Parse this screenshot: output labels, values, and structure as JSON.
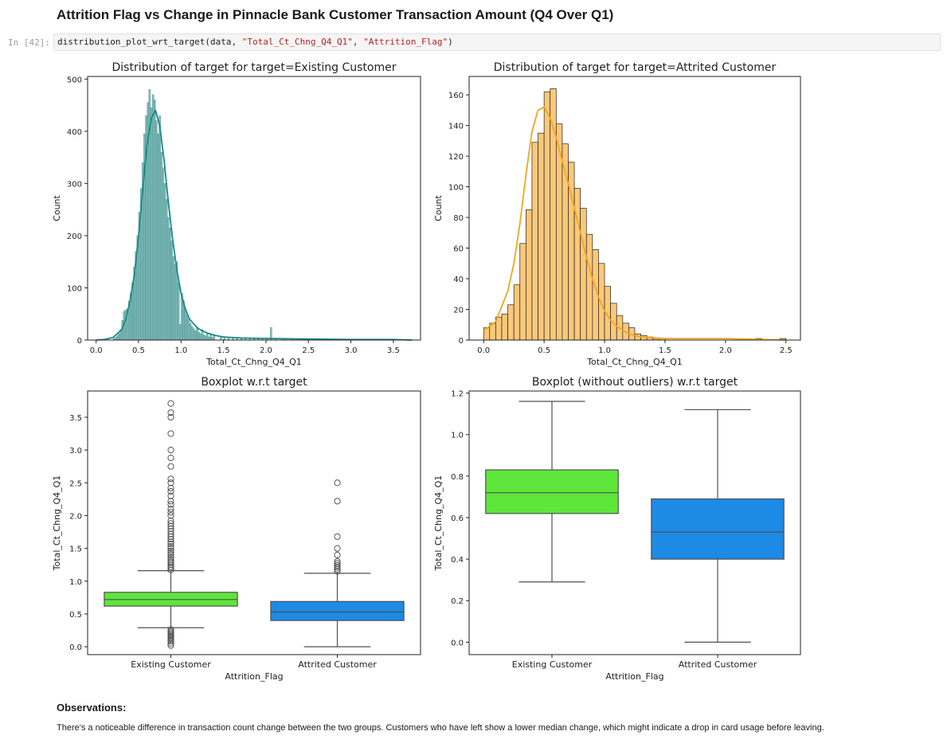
{
  "page": {
    "heading": "Attrition Flag vs Change in Pinnacle Bank Customer Transaction Amount (Q4 Over Q1)",
    "cell_prompt": "In [42]:",
    "code": {
      "prefix": "distribution_plot_wrt_target(data, ",
      "arg1": "\"Total_Ct_Chng_Q4_Q1\"",
      "sep": ", ",
      "arg2": "\"Attrition_Flag\"",
      "suffix": ")"
    },
    "observations_title": "Observations:",
    "observations_text": "There's a noticeable difference in transaction count change between the two groups. Customers who have left show a lower median change, which might indicate a drop in card usage before leaving."
  },
  "chart_data": [
    {
      "id": "hist_existing",
      "type": "bar",
      "title": "Distribution of target for target=Existing Customer",
      "xlabel": "Total_Ct_Chng_Q4_Q1",
      "ylabel": "Count",
      "xlim": [
        -0.1,
        3.82
      ],
      "ylim": [
        0,
        505
      ],
      "xticks": [
        0.0,
        0.5,
        1.0,
        1.5,
        2.0,
        2.5,
        3.0,
        3.5
      ],
      "xtick_labels": [
        "0.0",
        "0.5",
        "1.0",
        "1.5",
        "2.0",
        "2.5",
        "3.0",
        "3.5"
      ],
      "yticks": [
        0,
        100,
        200,
        300,
        400,
        500
      ],
      "ytick_labels": [
        "0",
        "100",
        "200",
        "300",
        "400",
        "500"
      ],
      "bin_width": 0.02,
      "bin_start": 0.2,
      "bin_counts": [
        3,
        5,
        8,
        12,
        20,
        38,
        55,
        58,
        60,
        75,
        90,
        110,
        140,
        170,
        200,
        245,
        290,
        340,
        395,
        430,
        455,
        480,
        445,
        470,
        460,
        420,
        395,
        430,
        360,
        330,
        300,
        270,
        235,
        215,
        190,
        160,
        145,
        150,
        110,
        30,
        90,
        75,
        60,
        48,
        40,
        32,
        26,
        22,
        18,
        25,
        15,
        12,
        20,
        10,
        8,
        12,
        6,
        10,
        5,
        8
      ],
      "tail_x": [
        1.46,
        1.5,
        1.55,
        1.6,
        1.65,
        1.7,
        1.75,
        1.8,
        1.85,
        1.9,
        1.95,
        2.0,
        2.05,
        2.1,
        2.2,
        2.3,
        2.4,
        2.5,
        2.6,
        2.9,
        3.1,
        3.25,
        3.45,
        3.55,
        3.7
      ],
      "tail_counts": [
        5,
        4,
        4,
        3,
        3,
        3,
        2,
        3,
        2,
        2,
        2,
        1,
        24,
        2,
        1,
        1,
        2,
        1,
        1,
        1,
        1,
        1,
        1,
        1,
        1
      ],
      "kde_x": [
        0.0,
        0.1,
        0.2,
        0.3,
        0.35,
        0.4,
        0.45,
        0.5,
        0.55,
        0.6,
        0.65,
        0.7,
        0.75,
        0.8,
        0.85,
        0.9,
        0.95,
        1.0,
        1.05,
        1.1,
        1.2,
        1.3,
        1.4,
        1.5,
        1.7,
        2.0,
        2.5,
        3.0,
        3.5,
        3.72
      ],
      "kde_y": [
        0,
        1,
        5,
        20,
        40,
        75,
        125,
        200,
        290,
        375,
        425,
        440,
        410,
        345,
        265,
        195,
        135,
        90,
        60,
        40,
        22,
        14,
        9,
        6,
        4,
        3,
        2,
        1,
        1,
        0
      ],
      "color": "#1a8a86"
    },
    {
      "id": "hist_attrited",
      "type": "bar",
      "title": "Distribution of target for target=Attrited Customer",
      "xlabel": "Total_Ct_Chng_Q4_Q1",
      "ylabel": "Count",
      "xlim": [
        -0.12,
        2.62
      ],
      "ylim": [
        0,
        172
      ],
      "xticks": [
        0.0,
        0.5,
        1.0,
        1.5,
        2.0,
        2.5
      ],
      "xtick_labels": [
        "0.0",
        "0.5",
        "1.0",
        "1.5",
        "2.0",
        "2.5"
      ],
      "yticks": [
        0,
        20,
        40,
        60,
        80,
        100,
        120,
        140,
        160
      ],
      "ytick_labels": [
        "0",
        "20",
        "40",
        "60",
        "80",
        "100",
        "120",
        "140",
        "160"
      ],
      "bin_width": 0.05,
      "bin_start": 0.0,
      "bin_counts": [
        8,
        11,
        15,
        17,
        23,
        36,
        63,
        85,
        129,
        135,
        162,
        164,
        141,
        128,
        116,
        99,
        86,
        69,
        59,
        50,
        35,
        24,
        16,
        11,
        8,
        4,
        3,
        2,
        1,
        1,
        0,
        0,
        0,
        0,
        0,
        0,
        0,
        0,
        0,
        0,
        0,
        0,
        0,
        0,
        0,
        1,
        0,
        0,
        0,
        1
      ],
      "kde_x": [
        0.0,
        0.1,
        0.2,
        0.25,
        0.3,
        0.35,
        0.4,
        0.45,
        0.5,
        0.55,
        0.6,
        0.65,
        0.7,
        0.75,
        0.8,
        0.85,
        0.9,
        0.95,
        1.0,
        1.05,
        1.1,
        1.2,
        1.3,
        1.5,
        2.0,
        2.5
      ],
      "kde_y": [
        6,
        12,
        32,
        50,
        76,
        108,
        136,
        150,
        152,
        145,
        132,
        117,
        102,
        86,
        70,
        54,
        40,
        28,
        19,
        13,
        9,
        4,
        2,
        1,
        1,
        0
      ],
      "color": "#f5a41c",
      "bar_color": "#fcc87a"
    },
    {
      "id": "boxplot_all",
      "type": "box",
      "title": "Boxplot w.r.t target",
      "xlabel": "Attrition_Flag",
      "ylabel": "Total_Ct_Chng_Q4_Q1",
      "ylim": [
        -0.12,
        3.9
      ],
      "yticks": [
        0.0,
        0.5,
        1.0,
        1.5,
        2.0,
        2.5,
        3.0,
        3.5
      ],
      "ytick_labels": [
        "0.0",
        "0.5",
        "1.0",
        "1.5",
        "2.0",
        "2.5",
        "3.0",
        "3.5"
      ],
      "categories": [
        "Existing Customer",
        "Attrited Customer"
      ],
      "boxes": [
        {
          "name": "Existing Customer",
          "whislo": 0.29,
          "q1": 0.62,
          "med": 0.72,
          "q3": 0.83,
          "whishi": 1.16,
          "color": "#5ee63b",
          "fliers": [
            0.02,
            0.05,
            0.08,
            0.1,
            0.12,
            0.14,
            0.16,
            0.18,
            0.2,
            0.22,
            0.24,
            0.26,
            1.17,
            1.2,
            1.22,
            1.25,
            1.28,
            1.3,
            1.33,
            1.36,
            1.4,
            1.43,
            1.46,
            1.5,
            1.53,
            1.57,
            1.6,
            1.64,
            1.68,
            1.72,
            1.76,
            1.8,
            1.84,
            1.88,
            1.92,
            2.0,
            2.05,
            2.1,
            2.17,
            2.22,
            2.3,
            2.37,
            2.42,
            2.5,
            2.56,
            2.75,
            2.88,
            3.0,
            3.25,
            3.5,
            3.57,
            3.71
          ]
        },
        {
          "name": "Attrited Customer",
          "whislo": 0.0,
          "q1": 0.4,
          "med": 0.53,
          "q3": 0.69,
          "whishi": 1.12,
          "color": "#1d8be6",
          "fliers": [
            1.15,
            1.18,
            1.21,
            1.24,
            1.27,
            1.3,
            1.4,
            1.5,
            1.68,
            2.22,
            2.5
          ]
        }
      ]
    },
    {
      "id": "boxplot_no_outliers",
      "type": "box",
      "title": "Boxplot (without outliers) w.r.t target",
      "xlabel": "Attrition_Flag",
      "ylabel": "Total_Ct_Chng_Q4_Q1",
      "ylim": [
        -0.06,
        1.21
      ],
      "yticks": [
        0.0,
        0.2,
        0.4,
        0.6,
        0.8,
        1.0,
        1.2
      ],
      "ytick_labels": [
        "0.0",
        "0.2",
        "0.4",
        "0.6",
        "0.8",
        "1.0",
        "1.2"
      ],
      "categories": [
        "Existing Customer",
        "Attrited Customer"
      ],
      "boxes": [
        {
          "name": "Existing Customer",
          "whislo": 0.29,
          "q1": 0.62,
          "med": 0.72,
          "q3": 0.83,
          "whishi": 1.16,
          "color": "#5ee63b",
          "fliers": []
        },
        {
          "name": "Attrited Customer",
          "whislo": 0.0,
          "q1": 0.4,
          "med": 0.53,
          "q3": 0.69,
          "whishi": 1.12,
          "color": "#1d8be6",
          "fliers": []
        }
      ]
    }
  ]
}
